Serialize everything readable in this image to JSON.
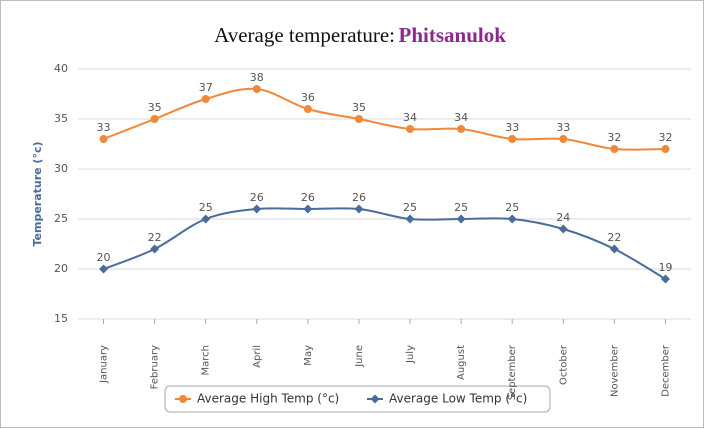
{
  "chart_data": {
    "type": "line",
    "title": "Average temperature:",
    "title_location": "Phitsanulok",
    "y_label": "Temperature (°c)",
    "categories": [
      "January",
      "February",
      "March",
      "April",
      "May",
      "June",
      "July",
      "August",
      "September",
      "October",
      "November",
      "December"
    ],
    "series": [
      {
        "name": "Average High Temp (°c)",
        "color": "#f0883a",
        "marker": "circle",
        "values": [
          33,
          35,
          37,
          38,
          36,
          35,
          34,
          34,
          33,
          33,
          32,
          32
        ]
      },
      {
        "name": "Average Low Temp (°c)",
        "color": "#4a6c9b",
        "marker": "diamond",
        "values": [
          20,
          22,
          25,
          26,
          26,
          26,
          25,
          25,
          25,
          24,
          22,
          19
        ]
      }
    ],
    "ylim": [
      15,
      40
    ],
    "yticks": [
      15,
      20,
      25,
      30,
      35,
      40
    ],
    "grid": true,
    "legend": "bottom"
  }
}
